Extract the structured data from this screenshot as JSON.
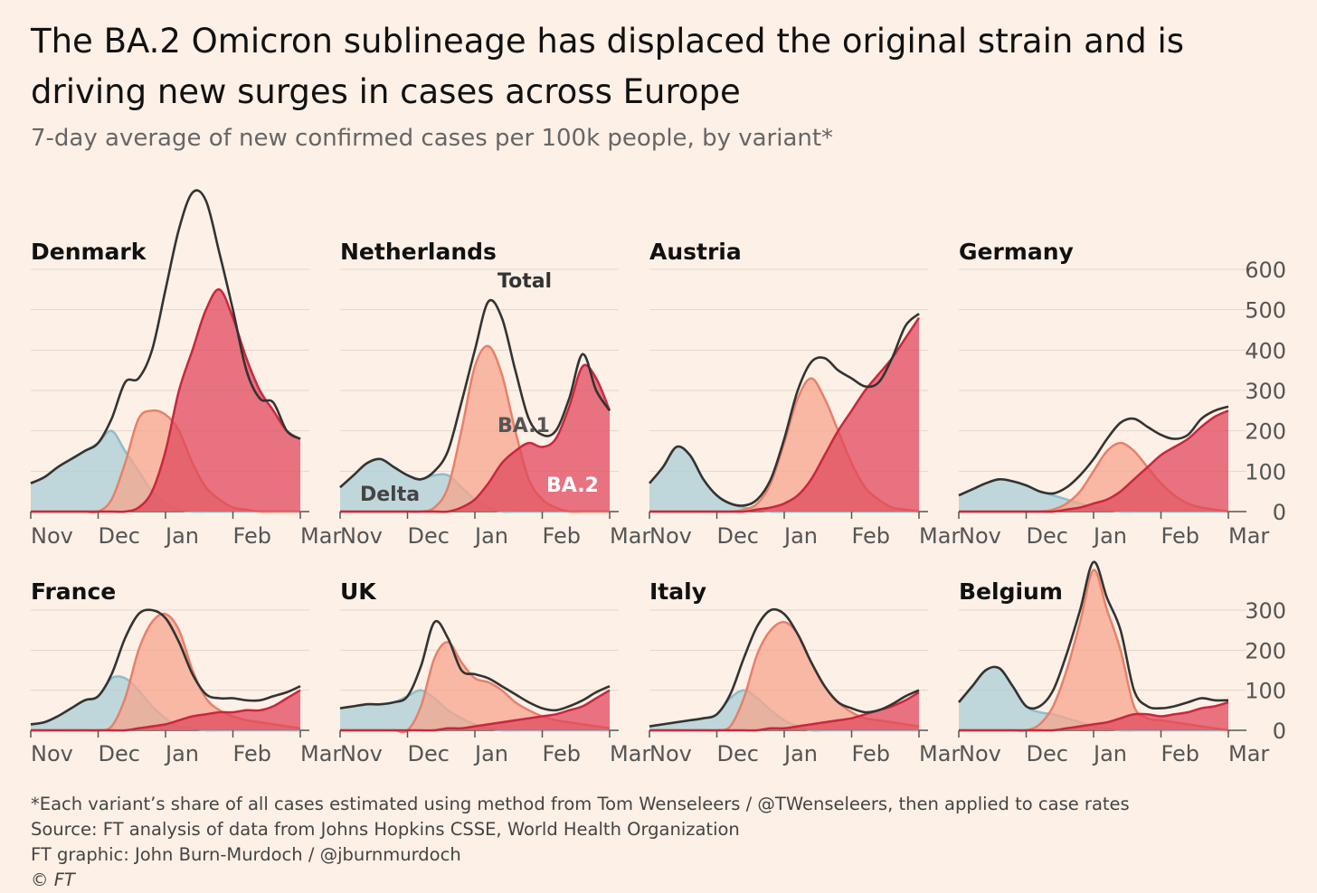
{
  "title": "The BA.2 Omicron sublineage has displaced the original strain and is driving new surges in cases across Europe",
  "subtitle": "7-day average of new confirmed cases per 100k people, by variant*",
  "footer": {
    "note": "*Each variant’s share of all cases estimated using method from Tom Wenseleers / @TWenseleers, then applied to case rates",
    "source": "Source: FT analysis of data from Johns Hopkins CSSE, World Health Organization",
    "credit": "FT graphic: John Burn-Murdoch / @jburnmurdoch",
    "copyright": "© FT"
  },
  "colors": {
    "background": "#fdf0e6",
    "total": "#333333",
    "delta": "#a9cfd6",
    "ba1": "#f5a68e",
    "ba2": "#e0485c",
    "grid": "#e3d7cc"
  },
  "chart_data": {
    "type": "area",
    "x": [
      "Nov",
      "Dec",
      "Jan",
      "Feb",
      "Mar"
    ],
    "x_sample_positions": [
      0,
      0.5,
      1,
      1.5,
      2,
      2.5,
      3,
      3.5,
      4,
      4.5,
      5,
      5.5,
      6,
      6.5,
      7,
      7.5,
      8,
      8.5,
      9,
      9.5,
      10
    ],
    "series_names": [
      "Total",
      "Delta",
      "BA.1",
      "BA.2"
    ],
    "annotations": {
      "total": "Total",
      "delta": "Delta",
      "ba1": "BA.1",
      "ba2": "BA.2"
    },
    "rows": [
      {
        "yticks": [
          0,
          100,
          200,
          300,
          400,
          500,
          600
        ],
        "ylim": [
          0,
          600
        ]
      },
      {
        "yticks": [
          0,
          100,
          200,
          300
        ],
        "ylim": [
          0,
          300
        ]
      }
    ],
    "panels": [
      {
        "name": "Denmark",
        "row": 0,
        "total": [
          70,
          85,
          110,
          130,
          150,
          170,
          230,
          320,
          330,
          400,
          550,
          700,
          790,
          770,
          640,
          500,
          350,
          280,
          270,
          200,
          180
        ],
        "delta": [
          70,
          85,
          110,
          130,
          150,
          170,
          200,
          150,
          100,
          50,
          20,
          5,
          0,
          0,
          0,
          0,
          0,
          0,
          0,
          0,
          0
        ],
        "ba1": [
          0,
          0,
          0,
          0,
          0,
          0,
          30,
          120,
          230,
          250,
          240,
          200,
          120,
          60,
          30,
          10,
          5,
          0,
          0,
          0,
          0
        ],
        "ba2": [
          0,
          0,
          0,
          0,
          0,
          0,
          0,
          0,
          10,
          50,
          150,
          300,
          400,
          500,
          550,
          480,
          380,
          300,
          250,
          200,
          180
        ]
      },
      {
        "name": "Netherlands",
        "row": 0,
        "total": [
          60,
          90,
          120,
          130,
          110,
          90,
          80,
          100,
          150,
          270,
          400,
          520,
          480,
          350,
          230,
          190,
          200,
          280,
          390,
          300,
          250
        ],
        "delta": [
          60,
          90,
          120,
          130,
          110,
          90,
          80,
          90,
          90,
          60,
          30,
          10,
          0,
          0,
          0,
          0,
          0,
          0,
          0,
          0,
          0
        ],
        "ba1": [
          0,
          0,
          0,
          0,
          0,
          0,
          0,
          10,
          60,
          200,
          360,
          410,
          340,
          200,
          80,
          30,
          10,
          0,
          0,
          0,
          0
        ],
        "ba2": [
          0,
          0,
          0,
          0,
          0,
          0,
          0,
          0,
          0,
          10,
          30,
          70,
          120,
          150,
          170,
          160,
          180,
          260,
          360,
          330,
          250
        ]
      },
      {
        "name": "Austria",
        "row": 0,
        "total": [
          70,
          110,
          160,
          140,
          80,
          40,
          20,
          15,
          30,
          80,
          180,
          300,
          370,
          380,
          350,
          330,
          310,
          320,
          380,
          460,
          490
        ],
        "delta": [
          70,
          110,
          160,
          140,
          80,
          40,
          20,
          10,
          5,
          0,
          0,
          0,
          0,
          0,
          0,
          0,
          0,
          0,
          0,
          0,
          0
        ],
        "ba1": [
          0,
          0,
          0,
          0,
          0,
          0,
          0,
          5,
          20,
          70,
          170,
          280,
          330,
          280,
          200,
          120,
          60,
          30,
          10,
          5,
          0
        ],
        "ba2": [
          0,
          0,
          0,
          0,
          0,
          0,
          0,
          0,
          5,
          10,
          20,
          40,
          80,
          140,
          200,
          250,
          300,
          340,
          380,
          430,
          480
        ]
      },
      {
        "name": "Germany",
        "row": 0,
        "total": [
          40,
          55,
          70,
          80,
          75,
          65,
          50,
          45,
          60,
          90,
          130,
          180,
          220,
          230,
          210,
          190,
          180,
          190,
          230,
          250,
          260
        ],
        "delta": [
          40,
          55,
          70,
          80,
          75,
          65,
          50,
          40,
          30,
          20,
          10,
          5,
          0,
          0,
          0,
          0,
          0,
          0,
          0,
          0,
          0
        ],
        "ba1": [
          0,
          0,
          0,
          0,
          0,
          0,
          0,
          5,
          20,
          50,
          100,
          150,
          170,
          150,
          110,
          70,
          40,
          20,
          10,
          5,
          0
        ],
        "ba2": [
          0,
          0,
          0,
          0,
          0,
          0,
          0,
          0,
          5,
          10,
          20,
          30,
          50,
          80,
          110,
          140,
          160,
          180,
          210,
          235,
          250
        ]
      },
      {
        "name": "France",
        "row": 1,
        "total": [
          15,
          20,
          35,
          55,
          75,
          85,
          140,
          230,
          290,
          300,
          280,
          220,
          140,
          90,
          80,
          80,
          75,
          75,
          85,
          95,
          110
        ],
        "delta": [
          15,
          20,
          35,
          55,
          75,
          85,
          130,
          130,
          100,
          60,
          30,
          10,
          5,
          0,
          0,
          0,
          0,
          0,
          0,
          0,
          0
        ],
        "ba1": [
          0,
          0,
          0,
          0,
          0,
          0,
          10,
          80,
          200,
          270,
          290,
          250,
          150,
          80,
          50,
          35,
          25,
          20,
          15,
          10,
          5
        ],
        "ba2": [
          0,
          0,
          0,
          0,
          0,
          0,
          0,
          0,
          5,
          10,
          15,
          25,
          35,
          40,
          45,
          45,
          50,
          50,
          60,
          80,
          100
        ]
      },
      {
        "name": "UK",
        "row": 1,
        "total": [
          55,
          60,
          65,
          65,
          70,
          85,
          160,
          270,
          230,
          150,
          140,
          130,
          110,
          90,
          70,
          55,
          50,
          60,
          75,
          95,
          110
        ],
        "delta": [
          55,
          60,
          65,
          65,
          70,
          85,
          100,
          80,
          50,
          30,
          15,
          5,
          0,
          0,
          0,
          0,
          0,
          0,
          0,
          0,
          0
        ],
        "ba1": [
          0,
          0,
          0,
          0,
          0,
          0,
          60,
          180,
          220,
          170,
          130,
          120,
          100,
          70,
          50,
          35,
          25,
          20,
          15,
          10,
          5
        ],
        "ba2": [
          0,
          0,
          0,
          0,
          0,
          0,
          0,
          0,
          5,
          5,
          10,
          15,
          20,
          25,
          30,
          35,
          40,
          50,
          60,
          80,
          100
        ]
      },
      {
        "name": "Italy",
        "row": 1,
        "total": [
          10,
          15,
          20,
          25,
          30,
          40,
          90,
          180,
          260,
          300,
          290,
          240,
          170,
          110,
          70,
          55,
          45,
          50,
          65,
          85,
          100
        ],
        "delta": [
          10,
          15,
          20,
          25,
          30,
          40,
          80,
          100,
          80,
          50,
          25,
          10,
          0,
          0,
          0,
          0,
          0,
          0,
          0,
          0,
          0
        ],
        "ba1": [
          0,
          0,
          0,
          0,
          0,
          0,
          10,
          80,
          190,
          250,
          270,
          240,
          170,
          110,
          70,
          45,
          30,
          25,
          20,
          15,
          10
        ],
        "ba2": [
          0,
          0,
          0,
          0,
          0,
          0,
          0,
          0,
          0,
          5,
          5,
          10,
          15,
          20,
          25,
          30,
          40,
          50,
          60,
          75,
          95
        ]
      },
      {
        "name": "Belgium",
        "row": 1,
        "total": [
          70,
          110,
          150,
          155,
          110,
          60,
          60,
          100,
          190,
          300,
          420,
          330,
          250,
          100,
          60,
          55,
          60,
          70,
          80,
          75,
          75
        ],
        "delta": [
          70,
          110,
          150,
          155,
          110,
          60,
          45,
          40,
          30,
          20,
          10,
          5,
          0,
          0,
          0,
          0,
          0,
          0,
          0,
          0,
          0
        ],
        "ba1": [
          0,
          0,
          0,
          0,
          0,
          0,
          15,
          60,
          150,
          270,
          400,
          300,
          200,
          60,
          30,
          25,
          20,
          15,
          10,
          5,
          0
        ],
        "ba2": [
          0,
          0,
          0,
          0,
          0,
          0,
          0,
          0,
          5,
          10,
          15,
          20,
          30,
          40,
          40,
          35,
          40,
          45,
          55,
          60,
          70
        ]
      }
    ]
  }
}
